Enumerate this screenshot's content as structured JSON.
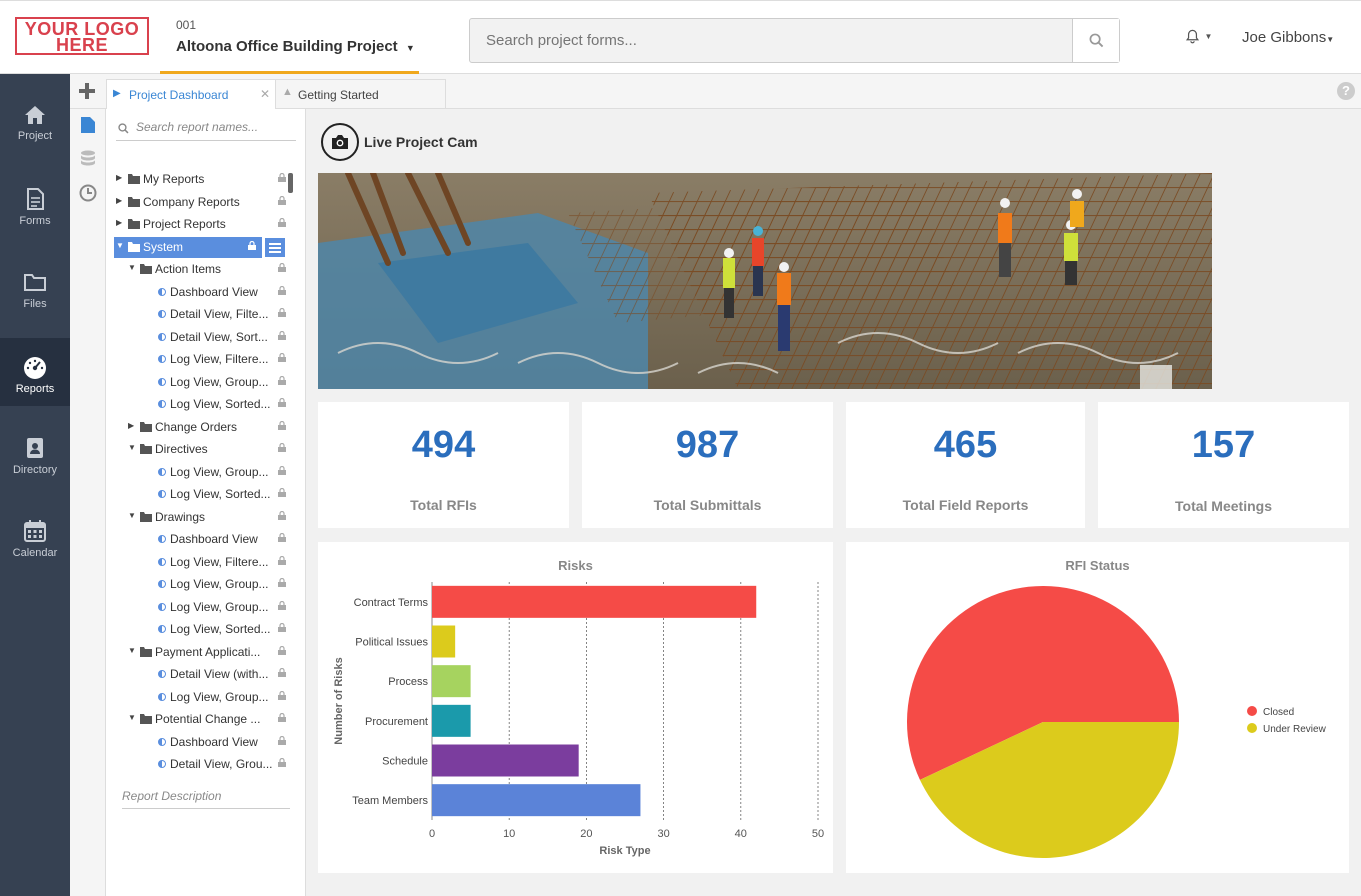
{
  "header": {
    "logo_text": "YOUR LOGO HERE",
    "project_number": "001",
    "project_name": "Altoona Office Building Project",
    "search_placeholder": "Search project forms...",
    "user_name": "Joe Gibbons"
  },
  "nav": [
    {
      "label": "Project",
      "icon": "home-icon"
    },
    {
      "label": "Forms",
      "icon": "document-icon"
    },
    {
      "label": "Files",
      "icon": "folder-icon"
    },
    {
      "label": "Reports",
      "icon": "gauge-icon",
      "active": true
    },
    {
      "label": "Directory",
      "icon": "contact-book-icon"
    },
    {
      "label": "Calendar",
      "icon": "calendar-icon"
    }
  ],
  "tabs": [
    {
      "label": "Project Dashboard",
      "active": true
    },
    {
      "label": "Getting Started"
    }
  ],
  "reports": {
    "search_placeholder": "Search report names...",
    "description_label": "Report Description",
    "tree": [
      {
        "label": "My Reports",
        "level": 0,
        "type": "folder",
        "expanded": false
      },
      {
        "label": "Company Reports",
        "level": 0,
        "type": "folder",
        "expanded": false
      },
      {
        "label": "Project Reports",
        "level": 0,
        "type": "folder",
        "expanded": false
      },
      {
        "label": "System",
        "level": 0,
        "type": "folder",
        "expanded": true,
        "selected": true
      },
      {
        "label": "Action Items",
        "level": 1,
        "type": "folder",
        "expanded": true
      },
      {
        "label": "Dashboard View",
        "level": 2,
        "type": "report"
      },
      {
        "label": "Detail View, Filte...",
        "level": 2,
        "type": "report"
      },
      {
        "label": "Detail View, Sort...",
        "level": 2,
        "type": "report"
      },
      {
        "label": "Log View, Filtere...",
        "level": 2,
        "type": "report"
      },
      {
        "label": "Log View, Group...",
        "level": 2,
        "type": "report"
      },
      {
        "label": "Log View, Sorted...",
        "level": 2,
        "type": "report"
      },
      {
        "label": "Change Orders",
        "level": 1,
        "type": "folder",
        "expanded": false
      },
      {
        "label": "Directives",
        "level": 1,
        "type": "folder",
        "expanded": true
      },
      {
        "label": "Log View, Group...",
        "level": 2,
        "type": "report"
      },
      {
        "label": "Log View, Sorted...",
        "level": 2,
        "type": "report"
      },
      {
        "label": "Drawings",
        "level": 1,
        "type": "folder",
        "expanded": true
      },
      {
        "label": "Dashboard View",
        "level": 2,
        "type": "report"
      },
      {
        "label": "Log View, Filtere...",
        "level": 2,
        "type": "report"
      },
      {
        "label": "Log View, Group...",
        "level": 2,
        "type": "report"
      },
      {
        "label": "Log View, Group...",
        "level": 2,
        "type": "report"
      },
      {
        "label": "Log View, Sorted...",
        "level": 2,
        "type": "report"
      },
      {
        "label": "Payment Applicati...",
        "level": 1,
        "type": "folder",
        "expanded": true
      },
      {
        "label": "Detail View (with...",
        "level": 2,
        "type": "report"
      },
      {
        "label": "Log View, Group...",
        "level": 2,
        "type": "report"
      },
      {
        "label": "Potential Change ...",
        "level": 1,
        "type": "folder",
        "expanded": true
      },
      {
        "label": "Dashboard View",
        "level": 2,
        "type": "report"
      },
      {
        "label": "Detail View, Grou...",
        "level": 2,
        "type": "report"
      }
    ]
  },
  "dashboard": {
    "cam_title": "Live Project Cam",
    "stats": [
      {
        "value": "494",
        "label": "Total RFIs"
      },
      {
        "value": "987",
        "label": "Total Submittals"
      },
      {
        "value": "465",
        "label": "Total Field Reports"
      },
      {
        "value": "157",
        "label": "Total Meetings"
      }
    ]
  },
  "chart_data": [
    {
      "type": "bar",
      "orientation": "horizontal",
      "title": "Risks",
      "xlabel": "Risk Type",
      "ylabel": "Number of Risks",
      "categories": [
        "Contract Terms",
        "Political Issues",
        "Process",
        "Procurement",
        "Schedule",
        "Team Members"
      ],
      "values": [
        42,
        3,
        5,
        5,
        19,
        27
      ],
      "colors": [
        "#f54b47",
        "#dccb1c",
        "#a6d35f",
        "#1b9aab",
        "#7b3d9e",
        "#5b83d8"
      ],
      "xlim": [
        0,
        50
      ],
      "xticks": [
        0,
        10,
        20,
        30,
        40,
        50
      ],
      "grid": true
    },
    {
      "type": "pie",
      "title": "RFI Status",
      "labels": [
        "Closed",
        "Under Review"
      ],
      "values": [
        57,
        43
      ],
      "colors": [
        "#f54b47",
        "#dccb1c"
      ],
      "legend": "right"
    }
  ]
}
